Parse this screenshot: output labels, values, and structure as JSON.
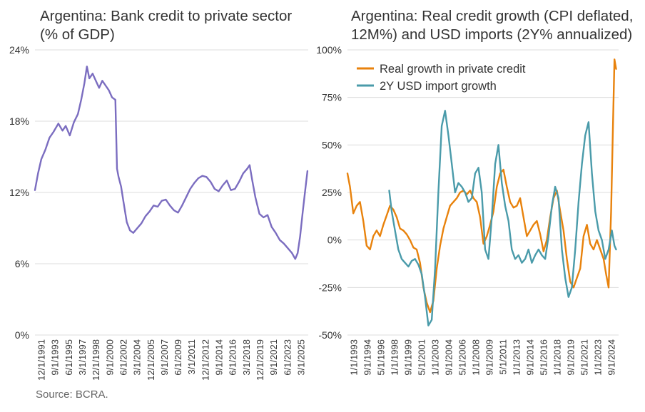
{
  "left_chart": {
    "title_line1": "Argentina: Bank credit to private sector",
    "title_line2": "(% of GDP)",
    "line_color": "#7B6DC0"
  },
  "right_chart": {
    "title_line1": "Argentina: Real credit growth (CPI deflated,",
    "title_line2": "12M%) and USD imports (2Y% annualized)",
    "colors": {
      "credit": "#E8820C",
      "imports": "#4A9BAA"
    }
  },
  "source": "Source: BCRA.",
  "chart_data": [
    {
      "type": "line",
      "title": "Argentina: Bank credit to private sector (% of GDP)",
      "xlabel": "",
      "ylabel": "",
      "ylim": [
        0,
        24
      ],
      "xlim": [
        1991.92,
        2025.5
      ],
      "y_ticks": [
        0,
        6,
        12,
        18,
        24
      ],
      "y_tick_labels": [
        "0%",
        "6%",
        "12%",
        "18%",
        "24%"
      ],
      "x_tick_labels": [
        "12/1/1991",
        "9/1/1993",
        "6/1/1995",
        "3/1/1997",
        "12/1/1998",
        "9/1/2000",
        "6/1/2002",
        "3/1/2004",
        "12/1/2005",
        "9/1/2007",
        "6/1/2009",
        "3/1/2011",
        "12/1/2012",
        "9/1/2014",
        "6/1/2016",
        "3/1/2018",
        "12/1/2019",
        "9/1/2021",
        "6/1/2023",
        "3/1/2025"
      ],
      "grid": true,
      "series": [
        {
          "name": "Bank credit to private sector (% of GDP)",
          "x": [
            1991.92,
            1992.3,
            1992.7,
            1993.2,
            1993.7,
            1994.2,
            1994.8,
            1995.3,
            1995.7,
            1996.2,
            1996.7,
            1997.2,
            1997.6,
            1998.0,
            1998.3,
            1998.6,
            1999.0,
            1999.4,
            1999.8,
            2000.2,
            2000.6,
            2001.0,
            2001.4,
            2001.8,
            2002.0,
            2002.2,
            2002.5,
            2002.8,
            2003.2,
            2003.6,
            2004.0,
            2004.5,
            2005.0,
            2005.5,
            2006.0,
            2006.5,
            2007.0,
            2007.5,
            2008.0,
            2008.5,
            2009.0,
            2009.5,
            2010.0,
            2010.5,
            2011.0,
            2011.5,
            2012.0,
            2012.5,
            2013.0,
            2013.5,
            2014.0,
            2014.5,
            2015.0,
            2015.5,
            2016.0,
            2016.5,
            2017.0,
            2017.5,
            2018.0,
            2018.3,
            2018.6,
            2019.0,
            2019.5,
            2020.0,
            2020.5,
            2021.0,
            2021.5,
            2022.0,
            2022.5,
            2023.0,
            2023.5,
            2023.9,
            2024.2,
            2024.5,
            2024.8,
            2025.1,
            2025.4
          ],
          "values": [
            12.2,
            13.6,
            14.8,
            15.6,
            16.6,
            17.1,
            17.8,
            17.2,
            17.6,
            16.8,
            17.9,
            18.6,
            19.8,
            21.2,
            22.6,
            21.6,
            22.0,
            21.4,
            20.8,
            21.4,
            21.0,
            20.6,
            20.0,
            19.8,
            14.0,
            13.3,
            12.5,
            11.2,
            9.5,
            8.8,
            8.6,
            9.0,
            9.4,
            10.0,
            10.4,
            10.9,
            10.8,
            11.3,
            11.4,
            10.9,
            10.5,
            10.3,
            10.9,
            11.6,
            12.3,
            12.8,
            13.2,
            13.4,
            13.3,
            12.9,
            12.3,
            12.1,
            12.6,
            13.0,
            12.2,
            12.3,
            12.9,
            13.6,
            14.0,
            14.3,
            13.1,
            11.6,
            10.2,
            9.9,
            10.1,
            9.1,
            8.6,
            8.0,
            7.7,
            7.3,
            6.9,
            6.4,
            6.9,
            8.3,
            10.2,
            12.0,
            13.8
          ]
        }
      ]
    },
    {
      "type": "line",
      "title": "Argentina: Real credit growth (CPI deflated, 12M%) and USD imports (2Y% annualized)",
      "xlabel": "",
      "ylabel": "",
      "ylim": [
        -50,
        100
      ],
      "xlim": [
        1993.0,
        2025.5
      ],
      "y_ticks": [
        -50,
        -25,
        0,
        25,
        50,
        75,
        100
      ],
      "y_tick_labels": [
        "-50%",
        "-25%",
        "0%",
        "25%",
        "50%",
        "75%",
        "100%"
      ],
      "x_tick_labels": [
        "1/1/1993",
        "9/1/1994",
        "5/1/1996",
        "1/1/1998",
        "9/1/1999",
        "5/1/2001",
        "1/1/2003",
        "9/1/2004",
        "5/1/2006",
        "1/1/2008",
        "9/1/2009",
        "5/1/2011",
        "1/1/2013",
        "9/1/2014",
        "5/1/2016",
        "1/1/2018",
        "9/1/2019",
        "5/1/2021",
        "1/1/2023",
        "9/1/2024"
      ],
      "grid": true,
      "legend": "top-left",
      "series": [
        {
          "name": "Real growth in private credit",
          "x": [
            1993.0,
            1993.3,
            1993.7,
            1994.1,
            1994.5,
            1994.9,
            1995.3,
            1995.7,
            1996.1,
            1996.5,
            1996.9,
            1997.3,
            1997.7,
            1998.1,
            1998.5,
            1998.9,
            1999.3,
            1999.7,
            2000.1,
            2000.5,
            2000.9,
            2001.3,
            2001.7,
            2002.1,
            2002.5,
            2002.9,
            2003.3,
            2003.7,
            2004.1,
            2004.5,
            2004.9,
            2005.3,
            2005.7,
            2006.1,
            2006.5,
            2006.9,
            2007.3,
            2007.7,
            2008.1,
            2008.5,
            2008.9,
            2009.3,
            2009.7,
            2010.1,
            2010.5,
            2010.9,
            2011.3,
            2011.7,
            2012.1,
            2012.5,
            2012.9,
            2013.3,
            2013.7,
            2014.1,
            2014.5,
            2014.9,
            2015.3,
            2015.7,
            2016.1,
            2016.5,
            2016.9,
            2017.3,
            2017.7,
            2018.1,
            2018.5,
            2018.9,
            2019.3,
            2019.7,
            2020.1,
            2020.5,
            2020.9,
            2021.3,
            2021.7,
            2022.1,
            2022.5,
            2022.9,
            2023.3,
            2023.7,
            2024.0,
            2024.3,
            2024.6,
            2024.8,
            2025.0,
            2025.2
          ],
          "values": [
            35,
            28,
            14,
            18,
            20,
            10,
            -3,
            -5,
            2,
            5,
            2,
            8,
            13,
            18,
            16,
            12,
            6,
            5,
            3,
            0,
            -4,
            -5,
            -12,
            -25,
            -33,
            -38,
            -32,
            -15,
            -3,
            6,
            12,
            18,
            20,
            22,
            25,
            26,
            24,
            26,
            22,
            20,
            12,
            -2,
            2,
            8,
            15,
            28,
            35,
            37,
            28,
            20,
            17,
            18,
            22,
            12,
            2,
            5,
            8,
            10,
            3,
            -6,
            0,
            12,
            22,
            26,
            15,
            5,
            -10,
            -22,
            -25,
            -20,
            -15,
            2,
            8,
            -2,
            -5,
            0,
            -5,
            -10,
            -18,
            -25,
            15,
            55,
            95,
            90
          ]
        },
        {
          "name": "2Y USD import growth",
          "x": [
            1998.0,
            1998.3,
            1998.7,
            1999.1,
            1999.5,
            1999.9,
            2000.3,
            2000.7,
            2001.1,
            2001.5,
            2001.9,
            2002.3,
            2002.7,
            2003.1,
            2003.5,
            2003.9,
            2004.3,
            2004.7,
            2005.1,
            2005.5,
            2005.9,
            2006.3,
            2006.7,
            2007.1,
            2007.5,
            2007.9,
            2008.3,
            2008.7,
            2009.1,
            2009.5,
            2009.9,
            2010.3,
            2010.7,
            2011.1,
            2011.5,
            2011.9,
            2012.3,
            2012.7,
            2013.1,
            2013.5,
            2013.9,
            2014.3,
            2014.7,
            2015.1,
            2015.5,
            2015.9,
            2016.3,
            2016.7,
            2017.1,
            2017.5,
            2017.9,
            2018.3,
            2018.7,
            2019.1,
            2019.5,
            2019.9,
            2020.3,
            2020.7,
            2021.1,
            2021.5,
            2021.9,
            2022.3,
            2022.7,
            2023.1,
            2023.5,
            2023.9,
            2024.3,
            2024.7,
            2025.0,
            2025.2
          ],
          "values": [
            26,
            15,
            5,
            -5,
            -10,
            -12,
            -14,
            -11,
            -10,
            -13,
            -18,
            -30,
            -45,
            -42,
            -15,
            25,
            60,
            68,
            55,
            40,
            25,
            30,
            28,
            25,
            20,
            22,
            35,
            38,
            25,
            -5,
            -10,
            12,
            40,
            50,
            30,
            18,
            10,
            -5,
            -10,
            -8,
            -12,
            -10,
            -5,
            -12,
            -8,
            -5,
            -8,
            -10,
            2,
            18,
            28,
            22,
            -5,
            -20,
            -30,
            -25,
            -5,
            20,
            40,
            55,
            62,
            35,
            15,
            5,
            0,
            -10,
            -5,
            5,
            -3,
            -5
          ]
        }
      ]
    }
  ]
}
